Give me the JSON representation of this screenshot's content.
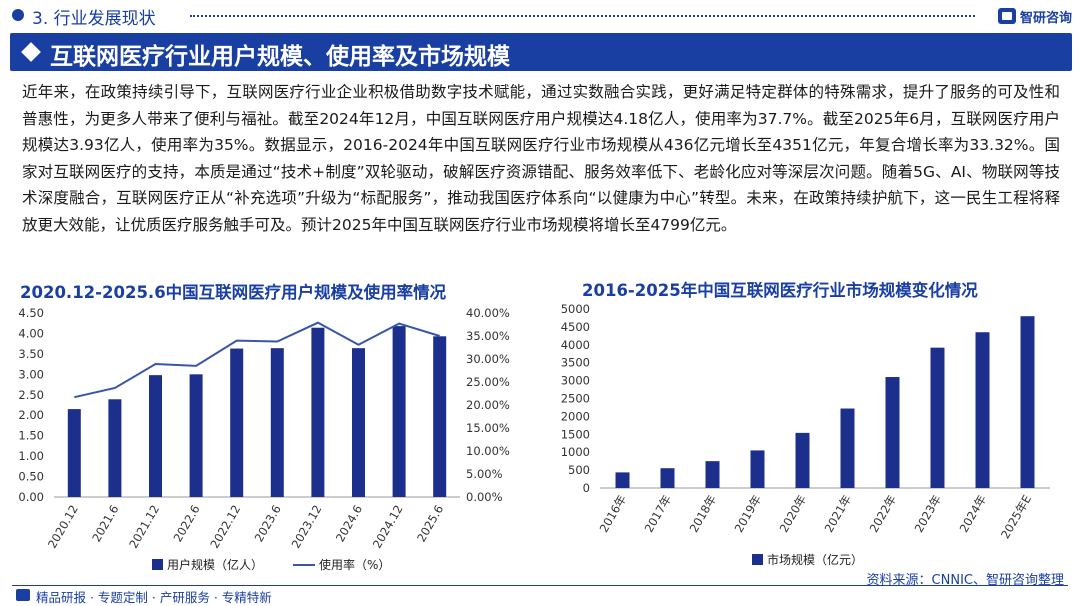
{
  "header": {
    "section": "3. 行业发展现状",
    "brand": "智研咨询",
    "title": "互联网医疗行业用户规模、使用率及市场规模"
  },
  "paragraph": "近年来，在政策持续引导下，互联网医疗行业企业积极借助数字技术赋能，通过实数融合实践，更好满足特定群体的特殊需求，提升了服务的可及性和普惠性，为更多人带来了便利与福祉。截至2024年12月，中国互联网医疗用户规模达4.18亿人，使用率为37.7%。截至2025年6月，互联网医疗用户规模达3.93亿人，使用率为35%。数据显示，2016-2024年中国互联网医疗行业市场规模从436亿元增长至4351亿元，年复合增长率为33.32%。国家对互联网医疗的支持，本质是通过“技术+制度”双轮驱动，破解医疗资源错配、服务效率低下、老龄化应对等深层次问题。随着5G、AI、物联网等技术深度融合，互联网医疗正从“补充选项”升级为“标配服务”，推动我国医疗体系向“以健康为中心”转型。未来，在政策持续护航下，这一民生工程将释放更大效能，让优质医疗服务触手可及。预计2025年中国互联网医疗行业市场规模将增长至4799亿元。",
  "chart_data": [
    {
      "type": "bar",
      "title": "2020.12-2025.6中国互联网医疗用户规模及使用率情况",
      "categories": [
        "2020.12",
        "2021.6",
        "2021.12",
        "2022.6",
        "2022.12",
        "2023.6",
        "2023.12",
        "2024.6",
        "2024.12",
        "2025.6"
      ],
      "series": [
        {
          "name": "用户规模（亿人）",
          "type": "bar",
          "axis": "left",
          "values": [
            2.15,
            2.39,
            2.98,
            3.0,
            3.63,
            3.64,
            4.14,
            3.64,
            4.18,
            3.93
          ]
        },
        {
          "name": "使用率（%）",
          "type": "line",
          "axis": "right",
          "values": [
            21.7,
            23.7,
            28.9,
            28.5,
            34.0,
            33.8,
            37.9,
            33.1,
            37.7,
            35.0
          ]
        }
      ],
      "y_ticks": [
        "0.00",
        "0.50",
        "1.00",
        "1.50",
        "2.00",
        "2.50",
        "3.00",
        "3.50",
        "4.00",
        "4.50"
      ],
      "y2_ticks": [
        "0.00%",
        "5.00%",
        "10.00%",
        "15.00%",
        "20.00%",
        "25.00%",
        "30.00%",
        "35.00%",
        "40.00%"
      ],
      "ylim": [
        0,
        4.5
      ],
      "y2lim": [
        0,
        40
      ],
      "colors": {
        "bar": "#1c2f8c",
        "line": "#3856a8"
      },
      "grid": false,
      "legend": "bottom"
    },
    {
      "type": "bar",
      "title": "2016-2025年中国互联网医疗行业市场规模变化情况",
      "categories": [
        "2016年",
        "2017年",
        "2018年",
        "2019年",
        "2020年",
        "2021年",
        "2022年",
        "2023年",
        "2024年",
        "2025年E"
      ],
      "series": [
        {
          "name": "市场规模（亿元）",
          "values": [
            436,
            553,
            750,
            1050,
            1540,
            2220,
            3100,
            3920,
            4351,
            4799
          ]
        }
      ],
      "y_ticks": [
        "0",
        "500",
        "1000",
        "1500",
        "2000",
        "2500",
        "3000",
        "3500",
        "4000",
        "4500",
        "5000"
      ],
      "ylim": [
        0,
        5000
      ],
      "colors": {
        "bar": "#1c2f8c"
      },
      "grid": false,
      "legend": "bottom"
    }
  ],
  "footer": {
    "left": "精品研报 · 专题定制 · 产研服务 · 专精特新",
    "source": "资料来源：CNNIC、智研咨询整理"
  }
}
